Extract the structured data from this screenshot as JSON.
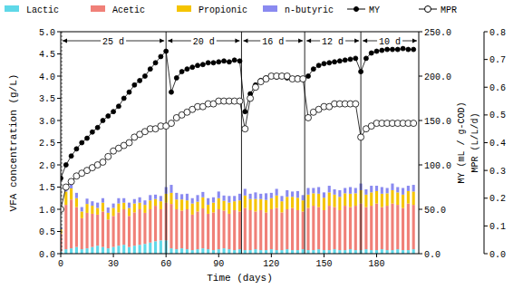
{
  "chart_data": {
    "type": "bar",
    "stacked": true,
    "legend": "top",
    "grid": false,
    "x_label": "Time (days)",
    "y_label": "VFA concentration (g/L)",
    "y2_label": "MY (mL / g-COD)",
    "y3_label": "MPR (L/L/d)",
    "xlim": [
      0,
      204
    ],
    "xticks": [
      0,
      30,
      60,
      90,
      120,
      150,
      180
    ],
    "ylim": [
      0,
      5
    ],
    "yticks": [
      {
        "value": 0,
        "label": "0.0"
      },
      0.5,
      {
        "value": 1,
        "label": "1.0"
      },
      1.5,
      {
        "value": 2,
        "label": "2.0"
      },
      2.5,
      {
        "value": 3,
        "label": "3.0"
      },
      3.5,
      {
        "value": 4,
        "label": "4.0"
      },
      4.5,
      {
        "value": 5,
        "label": "5.0"
      }
    ],
    "y2lim": [
      0,
      250
    ],
    "y2ticks": [
      {
        "value": 0,
        "label": "0.0"
      },
      {
        "value": 50,
        "label": "50.0"
      },
      {
        "value": 100,
        "label": "100.0"
      },
      {
        "value": 150,
        "label": "150.0"
      },
      {
        "value": 200,
        "label": "200.0"
      },
      {
        "value": 250,
        "label": "250.0"
      }
    ],
    "y3lim": [
      0,
      0.8
    ],
    "y3ticks": [
      {
        "value": 0,
        "label": "0.0"
      },
      0.1,
      0.2,
      0.3,
      0.4,
      0.5,
      0.6,
      0.7,
      0.8
    ],
    "annotations": [
      {
        "label": "25 d",
        "start": 0,
        "end": 60
      },
      {
        "label": "20 d",
        "start": 60,
        "end": 103
      },
      {
        "label": "16 d",
        "start": 103,
        "end": 139
      },
      {
        "label": "12 d",
        "start": 139,
        "end": 171
      },
      {
        "label": "10 d",
        "start": 171,
        "end": 204
      }
    ],
    "x": [
      0,
      3,
      6,
      9,
      12,
      15,
      18,
      21,
      24,
      27,
      30,
      33,
      36,
      39,
      42,
      45,
      48,
      51,
      54,
      57,
      60,
      63,
      66,
      69,
      72,
      75,
      78,
      81,
      84,
      87,
      90,
      93,
      96,
      99,
      102,
      105,
      108,
      111,
      114,
      117,
      120,
      123,
      126,
      129,
      132,
      135,
      138,
      141,
      144,
      147,
      150,
      153,
      156,
      159,
      162,
      165,
      168,
      171,
      174,
      177,
      180,
      183,
      186,
      189,
      192,
      195,
      198,
      201
    ],
    "series": [
      {
        "name": "Lactic",
        "type": "bar",
        "color": "#5fd8e8",
        "values": [
          0.05,
          0.1,
          0.12,
          0.15,
          0.1,
          0.12,
          0.15,
          0.18,
          0.15,
          0.12,
          0.15,
          0.18,
          0.2,
          0.15,
          0.18,
          0.2,
          0.22,
          0.25,
          0.28,
          0.3,
          0.3,
          0.12,
          0.1,
          0.12,
          0.1,
          0.08,
          0.1,
          0.12,
          0.1,
          0.08,
          0.1,
          0.12,
          0.1,
          0.08,
          0.1,
          0.08,
          0.08,
          0.1,
          0.08,
          0.08,
          0.1,
          0.08,
          0.08,
          0.1,
          0.08,
          0.08,
          0.1,
          0.08,
          0.08,
          0.1,
          0.08,
          0.08,
          0.1,
          0.08,
          0.08,
          0.1,
          0.08,
          0.08,
          0.1,
          0.08,
          0.08,
          0.1,
          0.08,
          0.08,
          0.1,
          0.08,
          0.08,
          0.1
        ]
      },
      {
        "name": "Acetic",
        "type": "bar",
        "color": "#f08078",
        "values": [
          0.4,
          1.0,
          1.1,
          0.9,
          0.7,
          0.8,
          0.75,
          0.7,
          0.8,
          0.65,
          0.7,
          0.75,
          0.8,
          0.7,
          0.75,
          0.8,
          0.7,
          0.75,
          0.8,
          0.7,
          0.85,
          1.0,
          0.9,
          0.85,
          0.9,
          0.8,
          0.85,
          0.9,
          0.8,
          0.85,
          0.9,
          0.85,
          0.8,
          0.9,
          0.85,
          0.95,
          0.9,
          0.85,
          0.9,
          0.85,
          0.9,
          0.95,
          0.85,
          0.9,
          0.95,
          0.9,
          0.85,
          0.95,
          1.0,
          0.95,
          0.9,
          1.0,
          0.95,
          0.9,
          1.0,
          0.95,
          1.0,
          1.05,
          0.95,
          1.0,
          1.05,
          0.95,
          1.0,
          1.05,
          1.0,
          0.95,
          1.05,
          1.0
        ]
      },
      {
        "name": "Propionic",
        "type": "bar",
        "color": "#f5c400",
        "values": [
          0.1,
          0.3,
          0.25,
          0.2,
          0.15,
          0.2,
          0.18,
          0.15,
          0.2,
          0.15,
          0.18,
          0.2,
          0.15,
          0.18,
          0.2,
          0.15,
          0.18,
          0.2,
          0.15,
          0.18,
          0.2,
          0.25,
          0.22,
          0.25,
          0.2,
          0.25,
          0.22,
          0.25,
          0.2,
          0.22,
          0.25,
          0.22,
          0.25,
          0.2,
          0.25,
          0.28,
          0.25,
          0.28,
          0.25,
          0.28,
          0.25,
          0.28,
          0.25,
          0.28,
          0.25,
          0.28,
          0.25,
          0.3,
          0.28,
          0.3,
          0.28,
          0.3,
          0.28,
          0.3,
          0.28,
          0.3,
          0.28,
          0.3,
          0.28,
          0.3,
          0.28,
          0.3,
          0.28,
          0.3,
          0.28,
          0.3,
          0.28,
          0.3
        ]
      },
      {
        "name": "n-butyric",
        "type": "bar",
        "color": "#8a8af0",
        "values": [
          0.05,
          0.15,
          0.2,
          0.12,
          0.1,
          0.12,
          0.1,
          0.12,
          0.1,
          0.12,
          0.1,
          0.12,
          0.1,
          0.12,
          0.1,
          0.12,
          0.1,
          0.12,
          0.1,
          0.12,
          0.15,
          0.18,
          0.15,
          0.12,
          0.15,
          0.12,
          0.15,
          0.12,
          0.15,
          0.12,
          0.15,
          0.12,
          0.15,
          0.12,
          0.15,
          0.15,
          0.12,
          0.15,
          0.12,
          0.15,
          0.12,
          0.15,
          0.12,
          0.15,
          0.12,
          0.15,
          0.12,
          0.15,
          0.12,
          0.15,
          0.12,
          0.15,
          0.12,
          0.15,
          0.12,
          0.15,
          0.12,
          0.15,
          0.12,
          0.15,
          0.12,
          0.15,
          0.12,
          0.15,
          0.12,
          0.15,
          0.12,
          0.15
        ]
      },
      {
        "name": "MY",
        "type": "line",
        "axis": "y2",
        "color": "#000000",
        "marker": "filled_circle",
        "line_style": "solid",
        "values": [
          85,
          100,
          110,
          118,
          125,
          130,
          137,
          142,
          150,
          155,
          160,
          166,
          175,
          182,
          190,
          195,
          200,
          208,
          215,
          222,
          228,
          182,
          198,
          205,
          208,
          210,
          212,
          213,
          215,
          215,
          216,
          217,
          216,
          218,
          217,
          160,
          180,
          190,
          195,
          198,
          200,
          199,
          200,
          198,
          197,
          198,
          197,
          200,
          208,
          212,
          214,
          215,
          216,
          217,
          218,
          219,
          220,
          205,
          220,
          226,
          228,
          229,
          230,
          230,
          230,
          231,
          230,
          230
        ]
      },
      {
        "name": "MPR",
        "type": "line",
        "axis": "y3",
        "color": "#000000",
        "marker": "open_circle",
        "line_style": "solid",
        "values": [
          0.16,
          0.24,
          0.26,
          0.28,
          0.29,
          0.3,
          0.31,
          0.32,
          0.33,
          0.35,
          0.37,
          0.38,
          0.39,
          0.4,
          0.42,
          0.43,
          0.44,
          0.45,
          0.45,
          0.46,
          0.46,
          0.47,
          0.49,
          0.5,
          0.51,
          0.52,
          0.53,
          0.53,
          0.54,
          0.54,
          0.55,
          0.55,
          0.55,
          0.55,
          0.55,
          0.45,
          0.56,
          0.6,
          0.62,
          0.63,
          0.64,
          0.64,
          0.64,
          0.64,
          0.63,
          0.63,
          0.63,
          0.49,
          0.51,
          0.52,
          0.53,
          0.53,
          0.54,
          0.54,
          0.54,
          0.54,
          0.54,
          0.42,
          0.45,
          0.46,
          0.47,
          0.47,
          0.47,
          0.47,
          0.47,
          0.47,
          0.47,
          0.47
        ]
      }
    ]
  }
}
